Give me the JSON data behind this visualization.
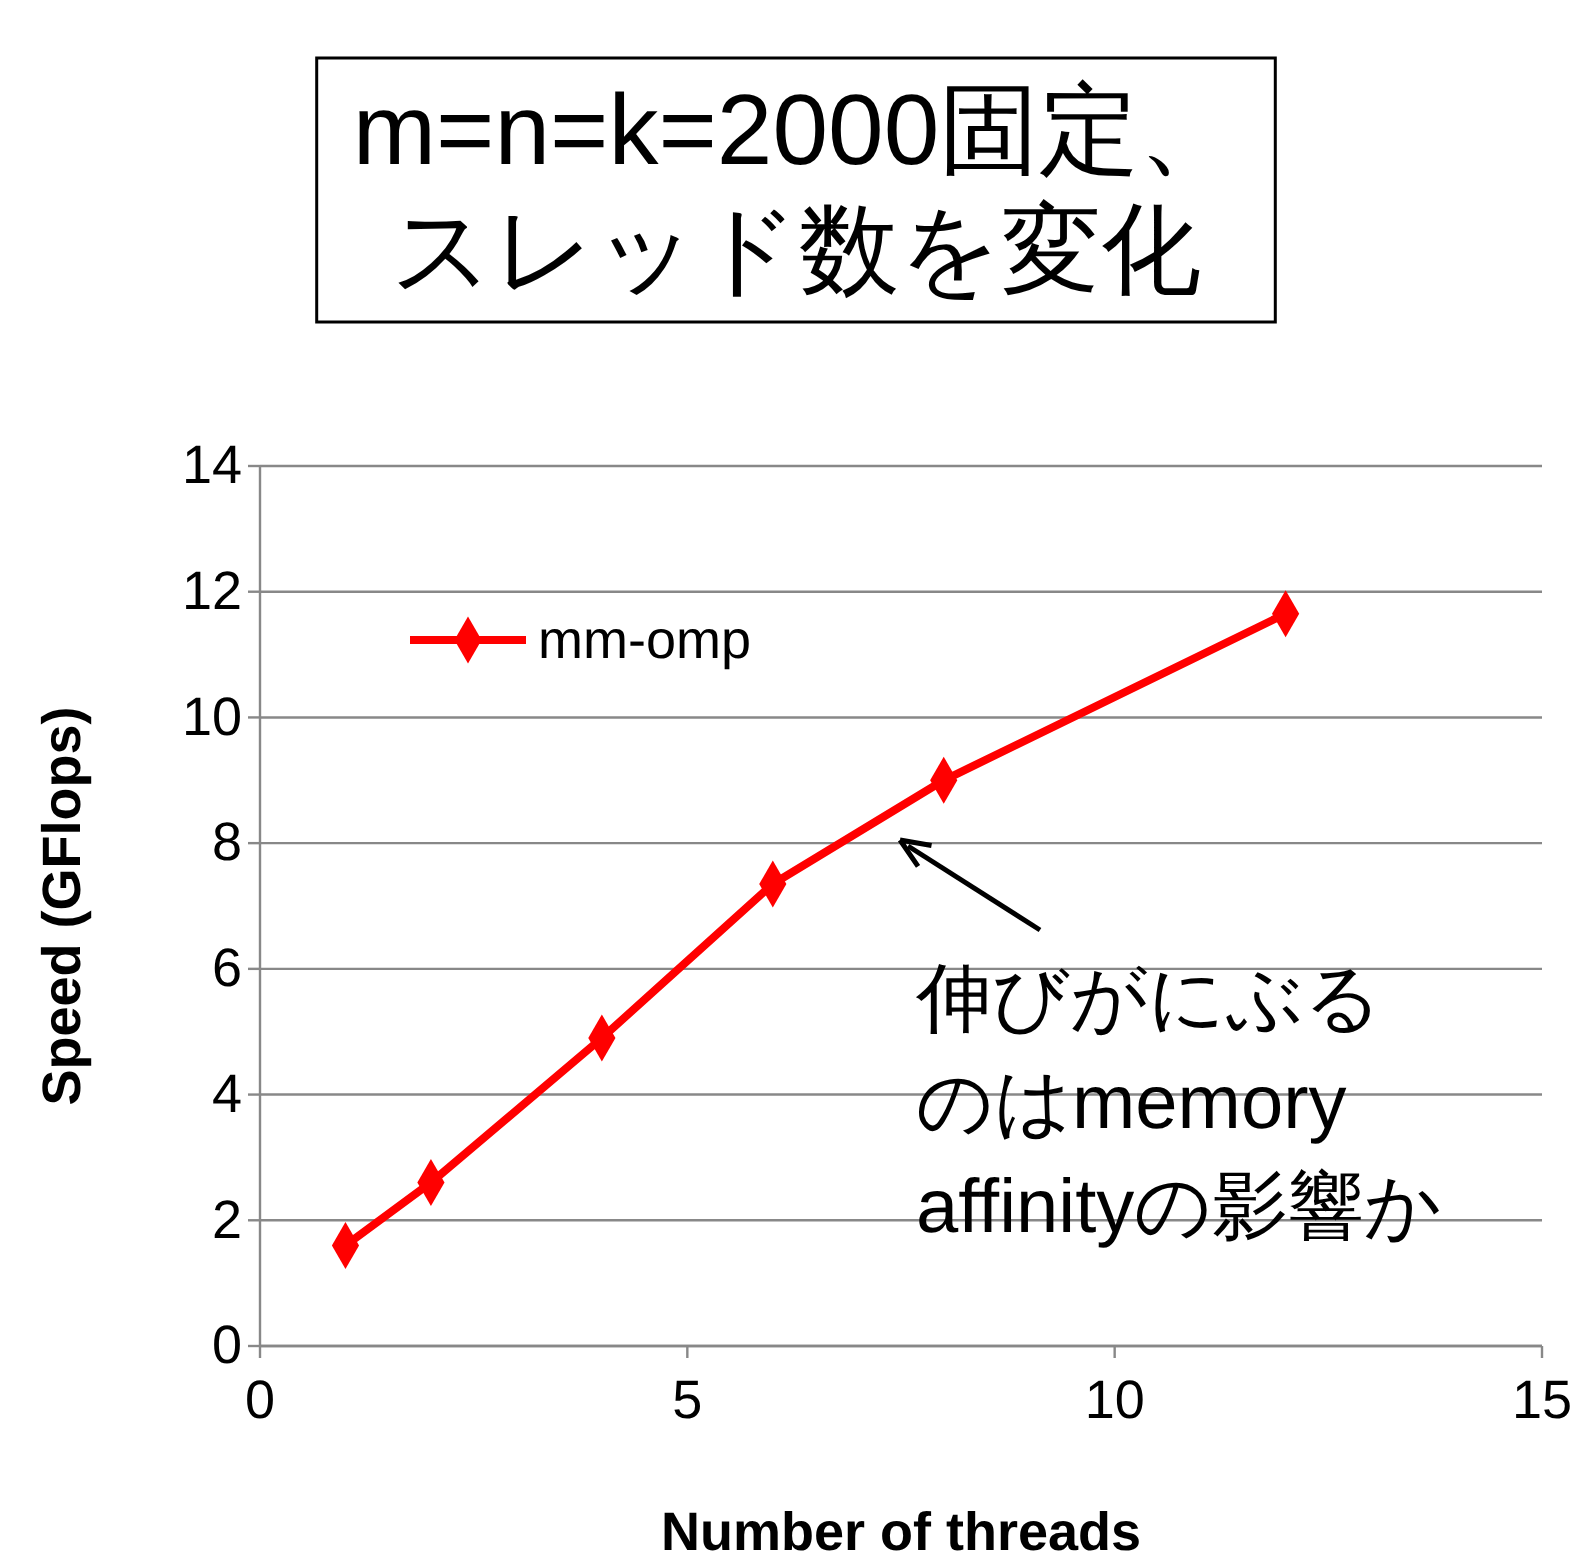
{
  "chart_data": {
    "type": "line",
    "title": "m=n=k=2000固定、スレッド数を変化",
    "xlabel": "Number of threads",
    "ylabel": "Speed (GFlops)",
    "x": [
      1,
      2,
      4,
      6,
      8,
      12
    ],
    "series": [
      {
        "name": "mm-omp",
        "color": "#ff0000",
        "values": [
          1.6,
          2.6,
          4.9,
          7.35,
          9.0,
          11.65
        ]
      }
    ],
    "xlim": [
      0,
      15
    ],
    "xticks": [
      0,
      5,
      10,
      15
    ],
    "ylim": [
      0,
      14
    ],
    "yticks": [
      0,
      2,
      4,
      6,
      8,
      10,
      12,
      14
    ],
    "grid": "y",
    "legend": "top left",
    "marker": "diamond",
    "line_style": "solid",
    "annotations": [
      "伸びがにぶるのはmemory affinityの影響か"
    ]
  }
}
